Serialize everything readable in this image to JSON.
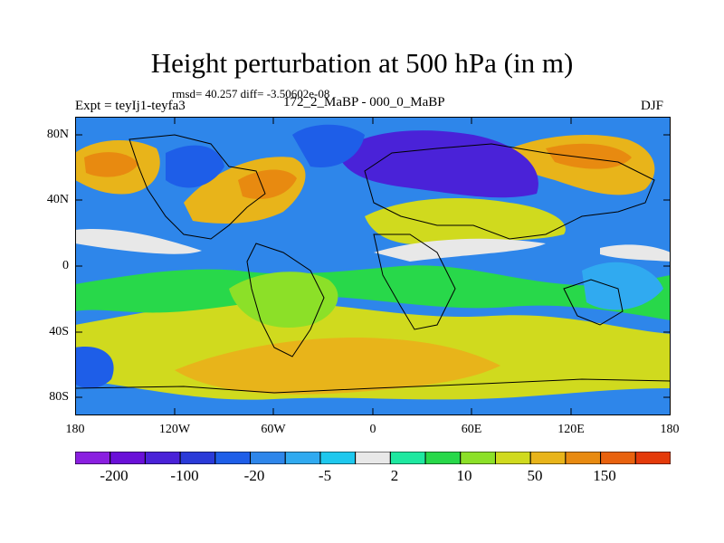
{
  "title": "Height perturbation at 500 hPa (in m)",
  "stats": "rmsd= 40.257 diff= -3.50602e-08",
  "experiment": "Expt = teyIj1-teyfa3",
  "period": "172_2_MaBP - 000_0_MaBP",
  "season": "DJF",
  "axes": {
    "lat_labels": [
      "80N",
      "40N",
      "0",
      "40S",
      "80S"
    ],
    "lon_labels": [
      "180",
      "120W",
      "60W",
      "0",
      "60E",
      "120E",
      "180"
    ]
  },
  "colorbar": {
    "colors": [
      "#8a1fe0",
      "#6a10d8",
      "#4a22d8",
      "#2a3ad8",
      "#1e5ee8",
      "#2e86ea",
      "#30aaf0",
      "#1ec8ee",
      "#e8e8e8",
      "#1ee8a0",
      "#28d84a",
      "#8ce028",
      "#d0da1e",
      "#e8b41a",
      "#e88a10",
      "#e8620e",
      "#e43a0a"
    ],
    "labels": [
      "-200",
      "-100",
      "-20",
      "-5",
      "2",
      "10",
      "50",
      "150"
    ]
  },
  "map_colors": {
    "ocean_bg": "#2e86ea",
    "neg_strong": "#4a22d8",
    "neg_mid": "#1e5ee8",
    "light_blue": "#30aaf0",
    "cyan": "#1ec8ee",
    "zero": "#e8e8e8",
    "green": "#28d84a",
    "yellow_green": "#8ce028",
    "yellow": "#d0da1e",
    "orange_light": "#e8b41a",
    "orange": "#e88a10",
    "red_orange": "#e8620e"
  }
}
